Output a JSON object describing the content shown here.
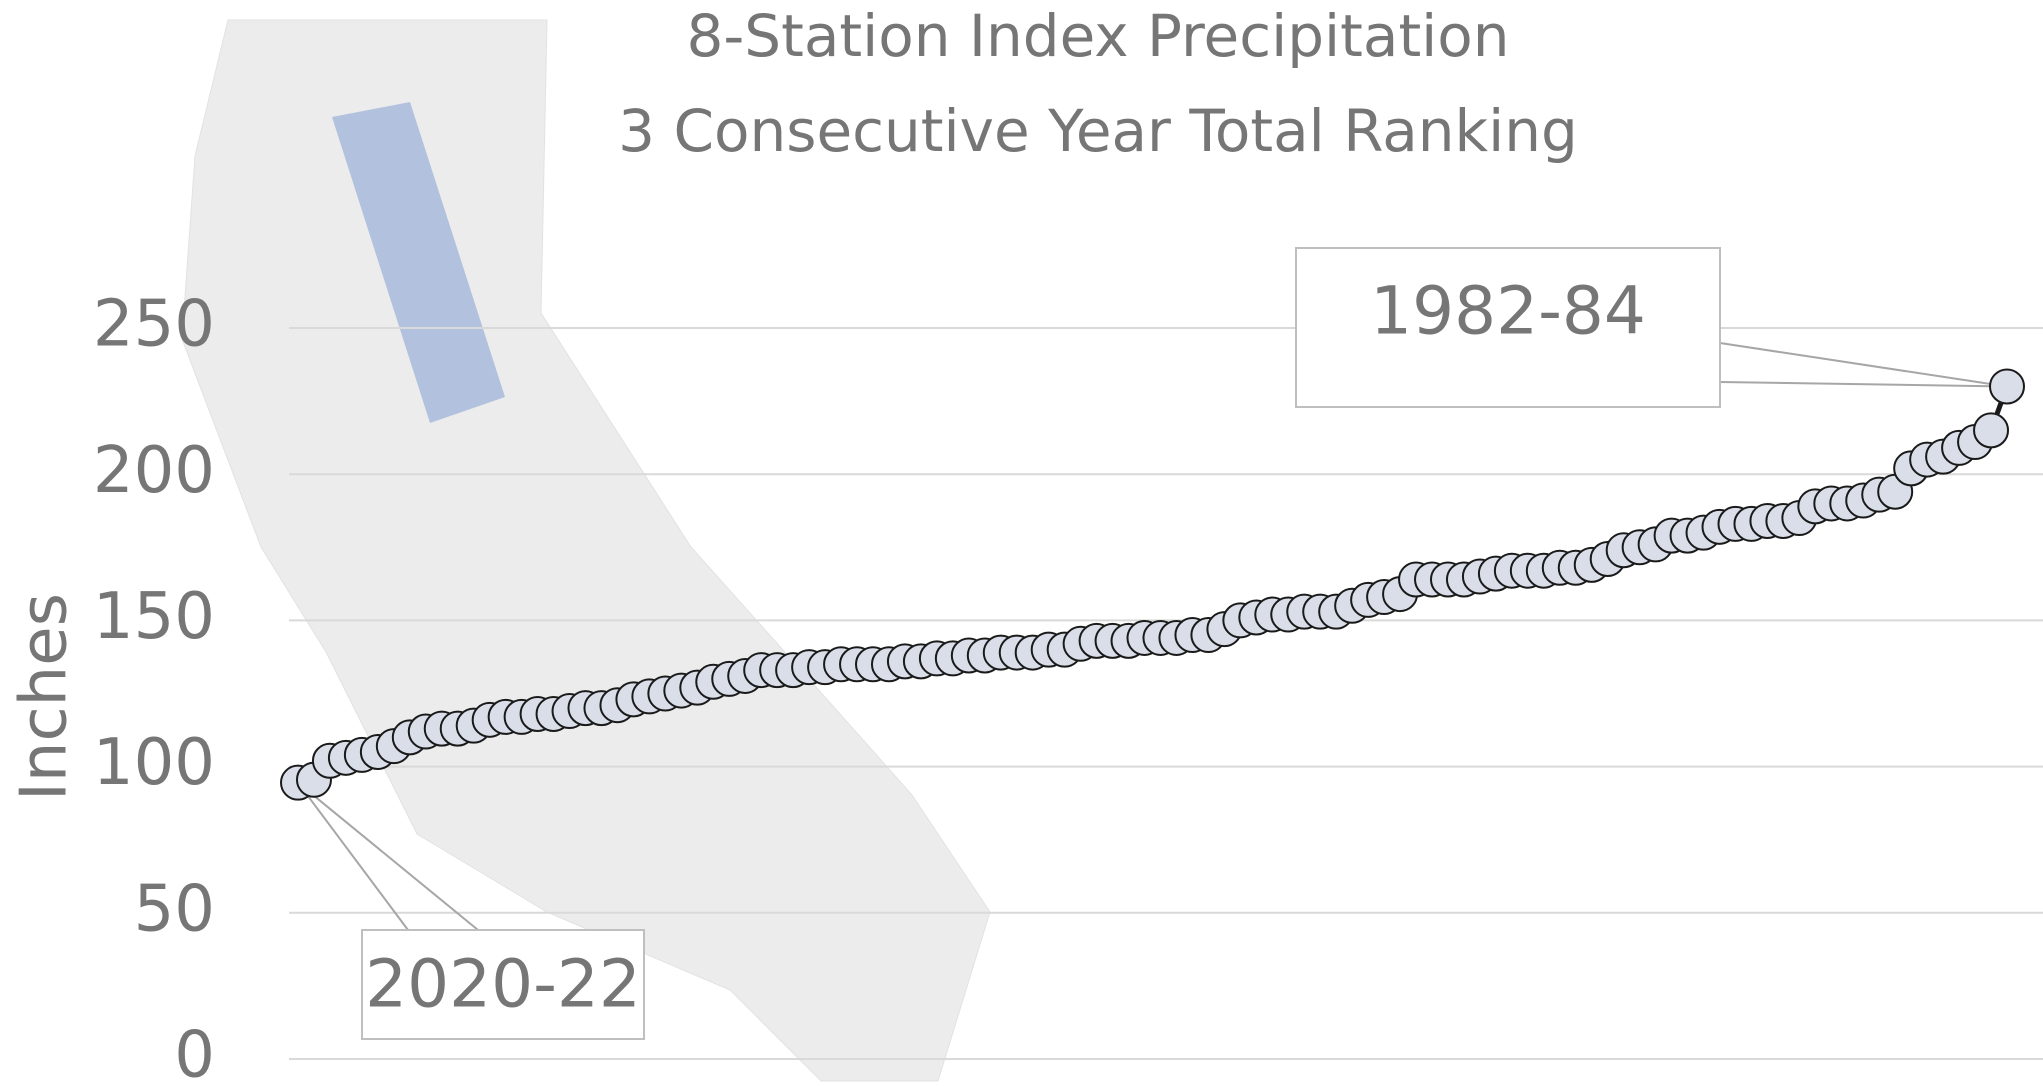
{
  "chart_data": {
    "type": "line",
    "title": "8-Station Index Precipitation",
    "subtitle": "3 Consecutive Year Total Ranking",
    "y_label": "Inches",
    "values": [
      94.5,
      95.5,
      102,
      103,
      104,
      105,
      107,
      110,
      112,
      113,
      113,
      114,
      116,
      117,
      117,
      118,
      118,
      119,
      120,
      120,
      121,
      123,
      124,
      125,
      126,
      127,
      129,
      130,
      131,
      133,
      133,
      133,
      134,
      134,
      135,
      135,
      135,
      135,
      136,
      136,
      137,
      137,
      138,
      138,
      139,
      139,
      139,
      140,
      140,
      142,
      143,
      143,
      143,
      144,
      144,
      144,
      145,
      145,
      147,
      150,
      151,
      152,
      152,
      153,
      153,
      153,
      155,
      157,
      158,
      159,
      164,
      164,
      164,
      164,
      165,
      166,
      167,
      167,
      167,
      168,
      168,
      169,
      171,
      174,
      175,
      176,
      179,
      179,
      180,
      182,
      183,
      183,
      184,
      184,
      185,
      189,
      190,
      190,
      191,
      193,
      194,
      202,
      205,
      206,
      209,
      211,
      215,
      230
    ],
    "color": "#1a1a1a",
    "marker_color": "#d9dee8",
    "ylim": [
      0,
      250
    ],
    "yticks": [
      0,
      50,
      100,
      150,
      200,
      250
    ],
    "grid": true,
    "annotations": [
      {
        "text": "2020-22",
        "point": 0
      },
      {
        "text": "1982-84",
        "point": 107
      }
    ]
  }
}
